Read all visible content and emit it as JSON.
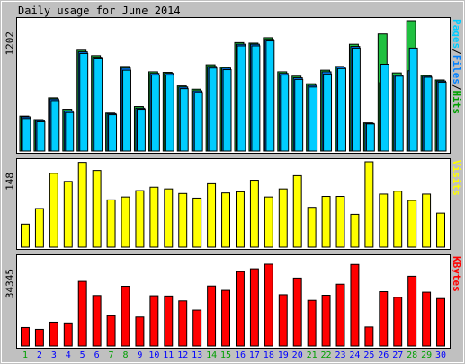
{
  "title": "Daily usage for June 2014",
  "colors": {
    "background": "#c0c0c0",
    "frame": "#ffffff",
    "panel": "#ffffff",
    "title_text": "#000000",
    "weekday_label": "#0000ff",
    "weekend_label": "#00a000",
    "pages": "#00ccff",
    "files": "#0080ff",
    "hits": "#00a000",
    "hits_fill": "#20c040",
    "visits": "#ffff00",
    "kbytes": "#ff0000",
    "bar_outline": "#000000"
  },
  "chart_data": [
    {
      "type": "bar",
      "panel": "hits-files-pages",
      "categories": [
        "1",
        "2",
        "3",
        "4",
        "5",
        "6",
        "7",
        "8",
        "9",
        "10",
        "11",
        "12",
        "13",
        "14",
        "15",
        "16",
        "17",
        "18",
        "19",
        "20",
        "21",
        "22",
        "23",
        "24",
        "25",
        "26",
        "27",
        "28",
        "29",
        "30"
      ],
      "weekend_days": [
        "1",
        "7",
        "8",
        "14",
        "15",
        "21",
        "22",
        "28",
        "29"
      ],
      "y_label": "1202",
      "ylim": [
        0,
        1202
      ],
      "legend": [
        {
          "text": "Pages",
          "color": "#00ccff"
        },
        {
          "text": "/",
          "color": "#000000"
        },
        {
          "text": "Files",
          "color": "#0080ff"
        },
        {
          "text": "/",
          "color": "#000000"
        },
        {
          "text": "Hits",
          "color": "#00a000"
        }
      ],
      "series": [
        {
          "name": "Hits",
          "values": [
            322,
            290,
            490,
            385,
            930,
            880,
            350,
            780,
            410,
            730,
            725,
            600,
            570,
            795,
            775,
            1000,
            995,
            1045,
            730,
            690,
            620,
            745,
            780,
            985,
            260,
            1080,
            720,
            1202,
            700,
            655
          ]
        },
        {
          "name": "Files",
          "values": [
            315,
            280,
            480,
            370,
            915,
            865,
            345,
            765,
            395,
            715,
            715,
            590,
            555,
            780,
            765,
            985,
            985,
            1030,
            715,
            675,
            605,
            730,
            775,
            965,
            255,
            630,
            700,
            740,
            690,
            645
          ]
        },
        {
          "name": "Pages",
          "values": [
            300,
            270,
            465,
            355,
            900,
            850,
            335,
            745,
            385,
            700,
            700,
            575,
            540,
            765,
            750,
            970,
            970,
            1015,
            700,
            660,
            590,
            710,
            760,
            950,
            250,
            800,
            690,
            950,
            680,
            635
          ]
        }
      ]
    },
    {
      "type": "bar",
      "panel": "visits",
      "categories": [
        "1",
        "2",
        "3",
        "4",
        "5",
        "6",
        "7",
        "8",
        "9",
        "10",
        "11",
        "12",
        "13",
        "14",
        "15",
        "16",
        "17",
        "18",
        "19",
        "20",
        "21",
        "22",
        "23",
        "24",
        "25",
        "26",
        "27",
        "28",
        "29",
        "30"
      ],
      "y_label": "148",
      "ylim": [
        0,
        148
      ],
      "legend": [
        {
          "text": "Visits",
          "color": "#ffff00"
        }
      ],
      "series": [
        {
          "name": "Visits",
          "values": [
            40,
            67,
            128,
            114,
            147,
            133,
            82,
            87,
            98,
            104,
            101,
            93,
            85,
            110,
            94,
            96,
            116,
            87,
            101,
            124,
            69,
            88,
            88,
            57,
            148,
            92,
            97,
            81,
            92,
            59
          ]
        }
      ]
    },
    {
      "type": "bar",
      "panel": "kbytes",
      "categories": [
        "1",
        "2",
        "3",
        "4",
        "5",
        "6",
        "7",
        "8",
        "9",
        "10",
        "11",
        "12",
        "13",
        "14",
        "15",
        "16",
        "17",
        "18",
        "19",
        "20",
        "21",
        "22",
        "23",
        "24",
        "25",
        "26",
        "27",
        "28",
        "29",
        "30"
      ],
      "y_label": "34345",
      "ylim": [
        0,
        34345
      ],
      "legend": [
        {
          "text": "KBytes",
          "color": "#ff0000"
        }
      ],
      "series": [
        {
          "name": "KBytes",
          "values": [
            7200,
            6500,
            9300,
            9000,
            25200,
            19700,
            11800,
            23300,
            11300,
            19600,
            19500,
            17600,
            14000,
            23400,
            21700,
            29000,
            30100,
            31900,
            20000,
            26500,
            17800,
            19800,
            24100,
            31800,
            7400,
            21200,
            19000,
            27200,
            21000,
            18500
          ]
        }
      ]
    }
  ]
}
